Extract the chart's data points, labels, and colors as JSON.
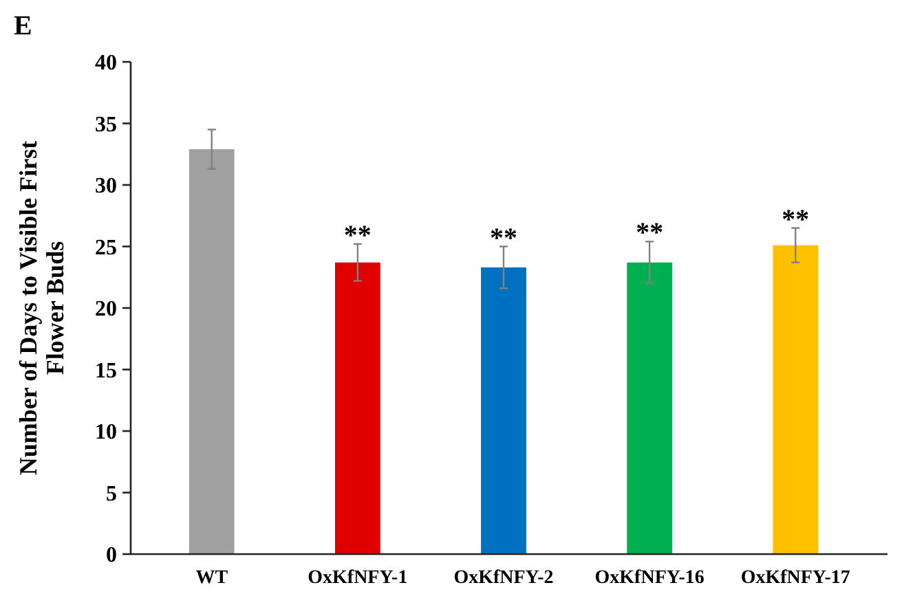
{
  "chart_data": {
    "type": "bar",
    "title": "E",
    "ylabel": "Number of Days to Visible First Flower Buds",
    "categories": [
      "WT",
      "OxKfNFY-1",
      "OxKfNFY-2",
      "OxKfNFY-16",
      "OxKfNFY-17"
    ],
    "values": [
      32.9,
      23.7,
      23.3,
      23.7,
      25.1
    ],
    "errors": [
      1.6,
      1.5,
      1.7,
      1.7,
      1.4
    ],
    "colors": [
      "#a0a0a0",
      "#e00000",
      "#0070c0",
      "#00b050",
      "#ffc000"
    ],
    "ylim": [
      0,
      40
    ],
    "yticks": [
      0,
      5,
      10,
      15,
      20,
      25,
      30,
      35,
      40
    ],
    "grid": false,
    "annotations": [
      {
        "text": "**",
        "x": "OxKfNFY-1",
        "y": 25.2
      },
      {
        "text": "**",
        "x": "OxKfNFY-2",
        "y": 25
      },
      {
        "text": "**",
        "x": "OxKfNFY-16",
        "y": 25.4
      },
      {
        "text": "**",
        "x": "OxKfNFY-17",
        "y": 26.5
      }
    ]
  }
}
